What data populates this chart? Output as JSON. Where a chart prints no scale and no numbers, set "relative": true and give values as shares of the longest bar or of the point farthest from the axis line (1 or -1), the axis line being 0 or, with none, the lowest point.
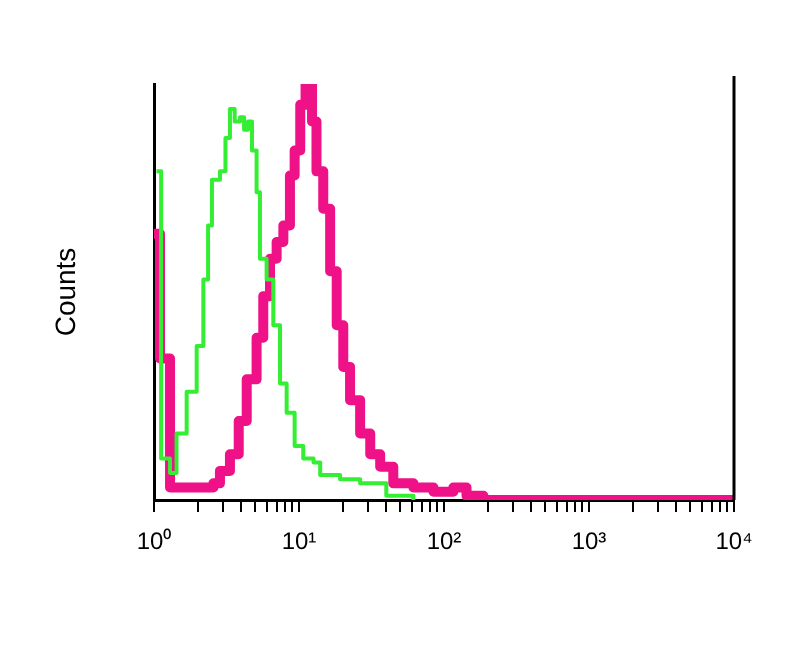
{
  "chart_data": {
    "type": "step",
    "ylabel": "Counts",
    "relative": true,
    "log": "x",
    "grid": false,
    "legend": false,
    "xlim": [
      1,
      10000
    ],
    "xticks": [
      {
        "value": 1,
        "label": "10⁰"
      },
      {
        "value": 2,
        "label": null
      },
      {
        "value": 3,
        "label": null
      },
      {
        "value": 4,
        "label": null
      },
      {
        "value": 5,
        "label": null
      },
      {
        "value": 6,
        "label": null
      },
      {
        "value": 7,
        "label": null
      },
      {
        "value": 8,
        "label": null
      },
      {
        "value": 9,
        "label": null
      },
      {
        "value": 10,
        "label": "10¹"
      },
      {
        "value": 20,
        "label": null
      },
      {
        "value": 30,
        "label": null
      },
      {
        "value": 40,
        "label": null
      },
      {
        "value": 50,
        "label": null
      },
      {
        "value": 60,
        "label": null
      },
      {
        "value": 70,
        "label": null
      },
      {
        "value": 80,
        "label": null
      },
      {
        "value": 90,
        "label": null
      },
      {
        "value": 100,
        "label": "10²"
      },
      {
        "value": 200,
        "label": null
      },
      {
        "value": 300,
        "label": null
      },
      {
        "value": 400,
        "label": null
      },
      {
        "value": 500,
        "label": null
      },
      {
        "value": 600,
        "label": null
      },
      {
        "value": 700,
        "label": null
      },
      {
        "value": 800,
        "label": null
      },
      {
        "value": 900,
        "label": null
      },
      {
        "value": 1000,
        "label": "10³"
      },
      {
        "value": 2000,
        "label": null
      },
      {
        "value": 3000,
        "label": null
      },
      {
        "value": 4000,
        "label": null
      },
      {
        "value": 5000,
        "label": null
      },
      {
        "value": 6000,
        "label": null
      },
      {
        "value": 7000,
        "label": null
      },
      {
        "value": 8000,
        "label": null
      },
      {
        "value": 9000,
        "label": null
      },
      {
        "value": 10000,
        "label": "10⁴"
      }
    ],
    "series": [
      {
        "color": "#33ee33",
        "x": [
          1.04,
          1.12,
          1.29,
          1.43,
          1.68,
          1.97,
          2.19,
          2.36,
          2.51,
          2.85,
          3.11,
          3.34,
          3.6,
          3.92,
          4.18,
          4.45,
          4.74,
          5.1,
          5.38,
          5.98,
          6.65,
          7.4,
          8.22,
          9.33,
          10.7,
          12.6,
          14,
          19.2,
          26.4,
          40,
          61.5
        ],
        "values": [
          0.79,
          0.1,
          0.065,
          0.16,
          0.26,
          0.37,
          0.53,
          0.66,
          0.77,
          0.79,
          0.87,
          0.94,
          0.91,
          0.92,
          0.89,
          0.91,
          0.84,
          0.74,
          0.58,
          0.53,
          0.42,
          0.28,
          0.21,
          0.13,
          0.1,
          0.09,
          0.06,
          0.05,
          0.04,
          0.01,
          0
        ]
      },
      {
        "color": "#ee1188",
        "x": [
          1,
          1.1,
          1.29,
          1.87,
          2.57,
          2.85,
          3.34,
          3.84,
          4.36,
          5.1,
          5.67,
          6.31,
          7.01,
          7.8,
          8.66,
          9.33,
          10.2,
          11.1,
          12.3,
          13.2,
          14.7,
          16.4,
          18.2,
          20.2,
          22.5,
          26.4,
          31,
          36.3,
          44.7,
          61.5,
          84.6,
          116,
          143,
          187,
          10000
        ],
        "values": [
          0.64,
          0.34,
          0.03,
          0.03,
          0.04,
          0.07,
          0.11,
          0.19,
          0.29,
          0.39,
          0.49,
          0.58,
          0.62,
          0.66,
          0.78,
          0.84,
          0.95,
          1,
          0.91,
          0.79,
          0.7,
          0.55,
          0.42,
          0.32,
          0.24,
          0.16,
          0.11,
          0.08,
          0.04,
          0.03,
          0.02,
          0.03,
          0.01,
          0,
          0
        ]
      }
    ]
  }
}
